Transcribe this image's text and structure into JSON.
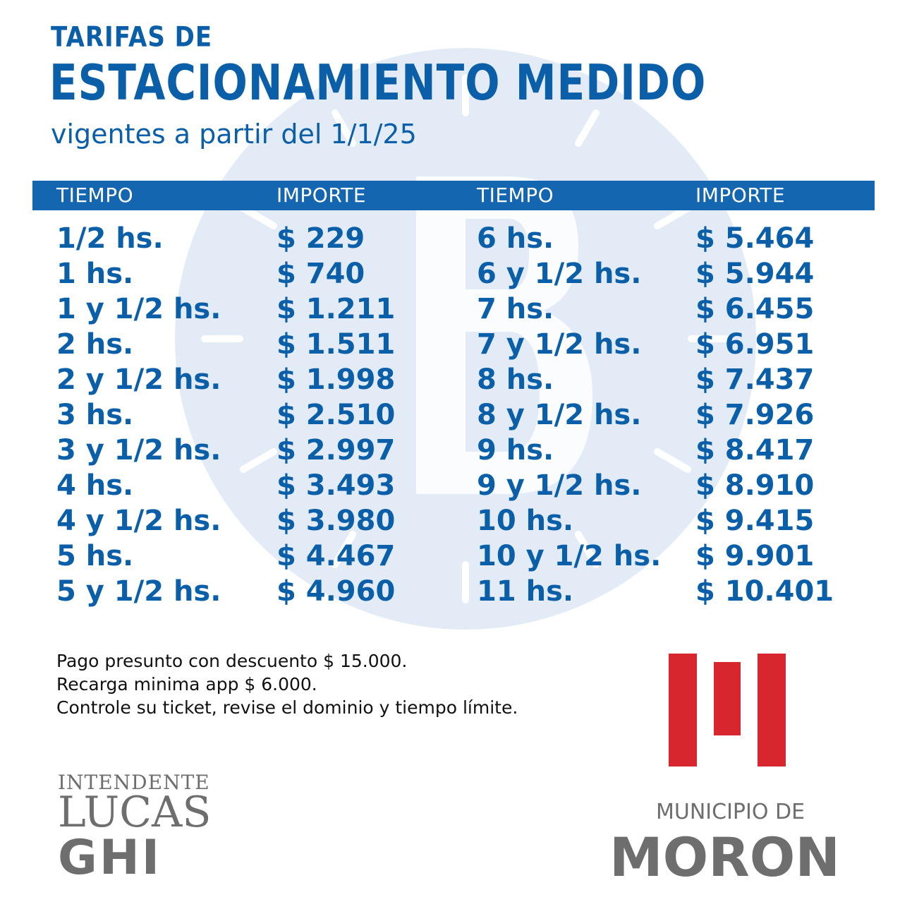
{
  "title": {
    "line1": "TARIFAS DE",
    "line2": "ESTACIONAMIENTO MEDIDO",
    "subtitle": "vigentes a partir del 1/1/25"
  },
  "table": {
    "headers": [
      "TIEMPO",
      "IMPORTE",
      "TIEMPO",
      "IMPORTE"
    ],
    "rows": [
      [
        "1/2 hs.",
        "$ 229",
        "6 hs.",
        "$ 5.464"
      ],
      [
        "1 hs.",
        "$ 740",
        "6 y 1/2 hs.",
        "$ 5.944"
      ],
      [
        "1 y 1/2 hs.",
        "$ 1.211",
        "7 hs.",
        "$ 6.455"
      ],
      [
        "2 hs.",
        "$ 1.511",
        "7 y 1/2 hs.",
        "$ 6.951"
      ],
      [
        "2 y 1/2 hs.",
        "$ 1.998",
        "8 hs.",
        "$ 7.437"
      ],
      [
        "3 hs.",
        "$ 2.510",
        "8 y 1/2 hs.",
        "$ 7.926"
      ],
      [
        "3 y 1/2 hs.",
        "$ 2.997",
        "9 hs.",
        "$ 8.417"
      ],
      [
        "4 hs.",
        "$ 3.493",
        "9 y 1/2 hs.",
        "$ 8.910"
      ],
      [
        "4 y 1/2 hs.",
        "$ 3.980",
        "10 hs.",
        "$ 9.415"
      ],
      [
        "5 hs.",
        "$ 4.467",
        "10 y 1/2 hs.",
        "$ 9.901"
      ],
      [
        "5 y 1/2 hs.",
        "$ 4.960",
        "11 hs.",
        "$ 10.401"
      ]
    ]
  },
  "notes": [
    "Pago presunto con descuento $ 15.000.",
    "Recarga minima app $ 6.000.",
    "Controle su ticket, revise el dominio y tiempo límite."
  ],
  "mayor": {
    "role": "INTENDENTE",
    "first_name": "LUCAS",
    "last_name": "GHI"
  },
  "municipality": {
    "label": "MUNICIPIO DE",
    "name": "MORON"
  },
  "colors": {
    "primary_blue": "#0a5fa8",
    "header_blue": "#1466b0",
    "watermark_blue": "#e3ecf6",
    "logo_red": "#d7262e",
    "gray": "#6e6e6e"
  },
  "icons": {
    "background": "parking-clock-watermark-icon",
    "logo": "municipio-moron-logo-icon"
  }
}
